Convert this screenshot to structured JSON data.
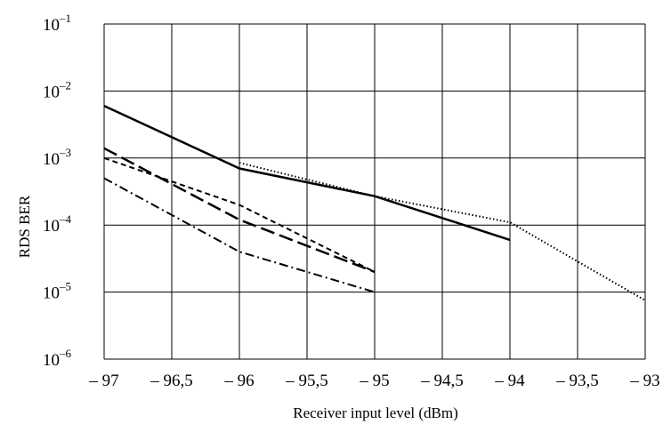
{
  "chart_data": {
    "type": "line",
    "title": "",
    "xlabel": "Receiver input level (dBm)",
    "ylabel": "RDS BER",
    "x_ticks": [
      {
        "value": -97,
        "label": "– 97"
      },
      {
        "value": -96.5,
        "label": "– 96,5"
      },
      {
        "value": -96,
        "label": "– 96"
      },
      {
        "value": -95.5,
        "label": "– 95,5"
      },
      {
        "value": -95,
        "label": "– 95"
      },
      {
        "value": -94.5,
        "label": "– 94,5"
      },
      {
        "value": -94,
        "label": "– 94"
      },
      {
        "value": -93.5,
        "label": "– 93,5"
      },
      {
        "value": -93,
        "label": "– 93"
      }
    ],
    "y_ticks": [
      {
        "exp": -1,
        "base": "10",
        "sup": "–1"
      },
      {
        "exp": -2,
        "base": "10",
        "sup": "–2"
      },
      {
        "exp": -3,
        "base": "10",
        "sup": "–3"
      },
      {
        "exp": -4,
        "base": "10",
        "sup": "–4"
      },
      {
        "exp": -5,
        "base": "10",
        "sup": "–5"
      },
      {
        "exp": -6,
        "base": "10",
        "sup": "–6"
      }
    ],
    "xlim": [
      -97,
      -93
    ],
    "ylim": [
      1e-06,
      0.1
    ],
    "yscale": "log",
    "grid": true,
    "series": [
      {
        "style": "solid",
        "stroke_width": 2.5,
        "points": [
          [
            -97,
            0.006
          ],
          [
            -96,
            0.0007
          ],
          [
            -95,
            0.00027
          ],
          [
            -94,
            6e-05
          ]
        ]
      },
      {
        "style": "dotted",
        "stroke_width": 2,
        "points": [
          [
            -96,
            0.00085
          ],
          [
            -95,
            0.00027
          ],
          [
            -94,
            0.00011
          ],
          [
            -93,
            7.5e-06
          ]
        ]
      },
      {
        "style": "long-dash",
        "stroke_width": 2.5,
        "points": [
          [
            -97,
            0.0014
          ],
          [
            -96,
            0.00012
          ],
          [
            -95,
            2e-05
          ]
        ]
      },
      {
        "style": "short-dash",
        "stroke_width": 2,
        "points": [
          [
            -97,
            0.001
          ],
          [
            -96,
            0.0002
          ],
          [
            -95,
            2e-05
          ]
        ]
      },
      {
        "style": "dash-dot",
        "stroke_width": 2,
        "points": [
          [
            -97,
            0.0005
          ],
          [
            -96,
            4e-05
          ],
          [
            -95,
            1e-05
          ]
        ]
      }
    ]
  }
}
